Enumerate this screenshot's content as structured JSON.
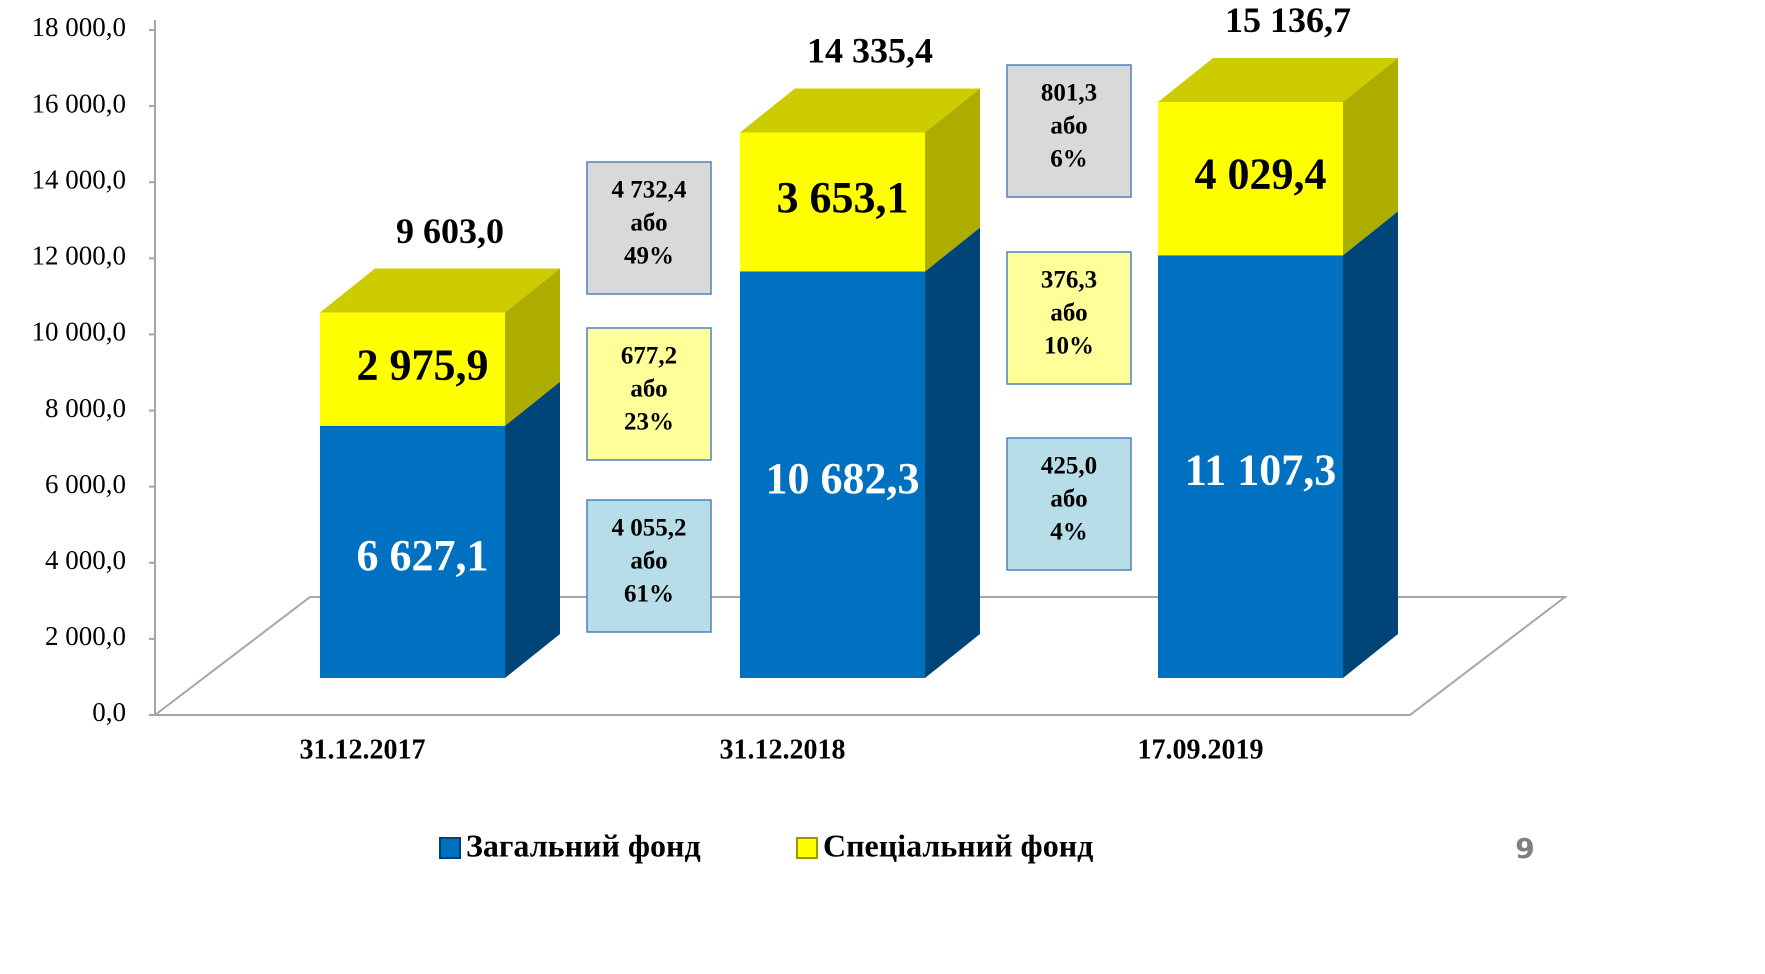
{
  "chart_data": {
    "type": "bar3d_stacked",
    "categories": [
      "31.12.2017",
      "31.12.2018",
      "17.09.2019"
    ],
    "series": [
      {
        "name": "Загальний фонд",
        "color": "#0070c0",
        "values": [
          6627.1,
          10682.3,
          11107.3
        ],
        "value_labels": [
          "6 627,1",
          "10 682,3",
          "11 107,3"
        ]
      },
      {
        "name": "Спеціальний фонд",
        "color": "#ffff00",
        "values": [
          2975.9,
          3653.1,
          4029.4
        ],
        "value_labels": [
          "2 975,9",
          "3 653,1",
          "4 029,4"
        ]
      }
    ],
    "totals": [
      9603.0,
      14335.4,
      15136.7
    ],
    "total_labels": [
      "9 603,0",
      "14 335,4",
      "15 136,7"
    ],
    "ylim": [
      0,
      18000
    ],
    "yticks": [
      {
        "value": 0,
        "label": "0,0"
      },
      {
        "value": 2000,
        "label": "2 000,0"
      },
      {
        "value": 4000,
        "label": "4 000,0"
      },
      {
        "value": 6000,
        "label": "6 000,0"
      },
      {
        "value": 8000,
        "label": "8 000,0"
      },
      {
        "value": 10000,
        "label": "10 000,0"
      },
      {
        "value": 12000,
        "label": "12 000,0"
      },
      {
        "value": 14000,
        "label": "14 000,0"
      },
      {
        "value": 16000,
        "label": "16 000,0"
      },
      {
        "value": 18000,
        "label": "18 000,0"
      }
    ],
    "annotations": [
      {
        "lines": [
          "4 055,2",
          "або",
          "61%"
        ],
        "color": "#b7dde8"
      },
      {
        "lines": [
          "677,2",
          "або",
          "23%"
        ],
        "color": "#ffff99"
      },
      {
        "lines": [
          "4 732,4",
          "або",
          "49%"
        ],
        "color": "#d9d9d9"
      },
      {
        "lines": [
          "425,0",
          "або",
          "4%"
        ],
        "color": "#b7dde8"
      },
      {
        "lines": [
          "376,3",
          "або",
          "10%"
        ],
        "color": "#ffff99"
      },
      {
        "lines": [
          "801,3",
          "або",
          "6%"
        ],
        "color": "#d9d9d9"
      }
    ],
    "page_number": "9"
  }
}
